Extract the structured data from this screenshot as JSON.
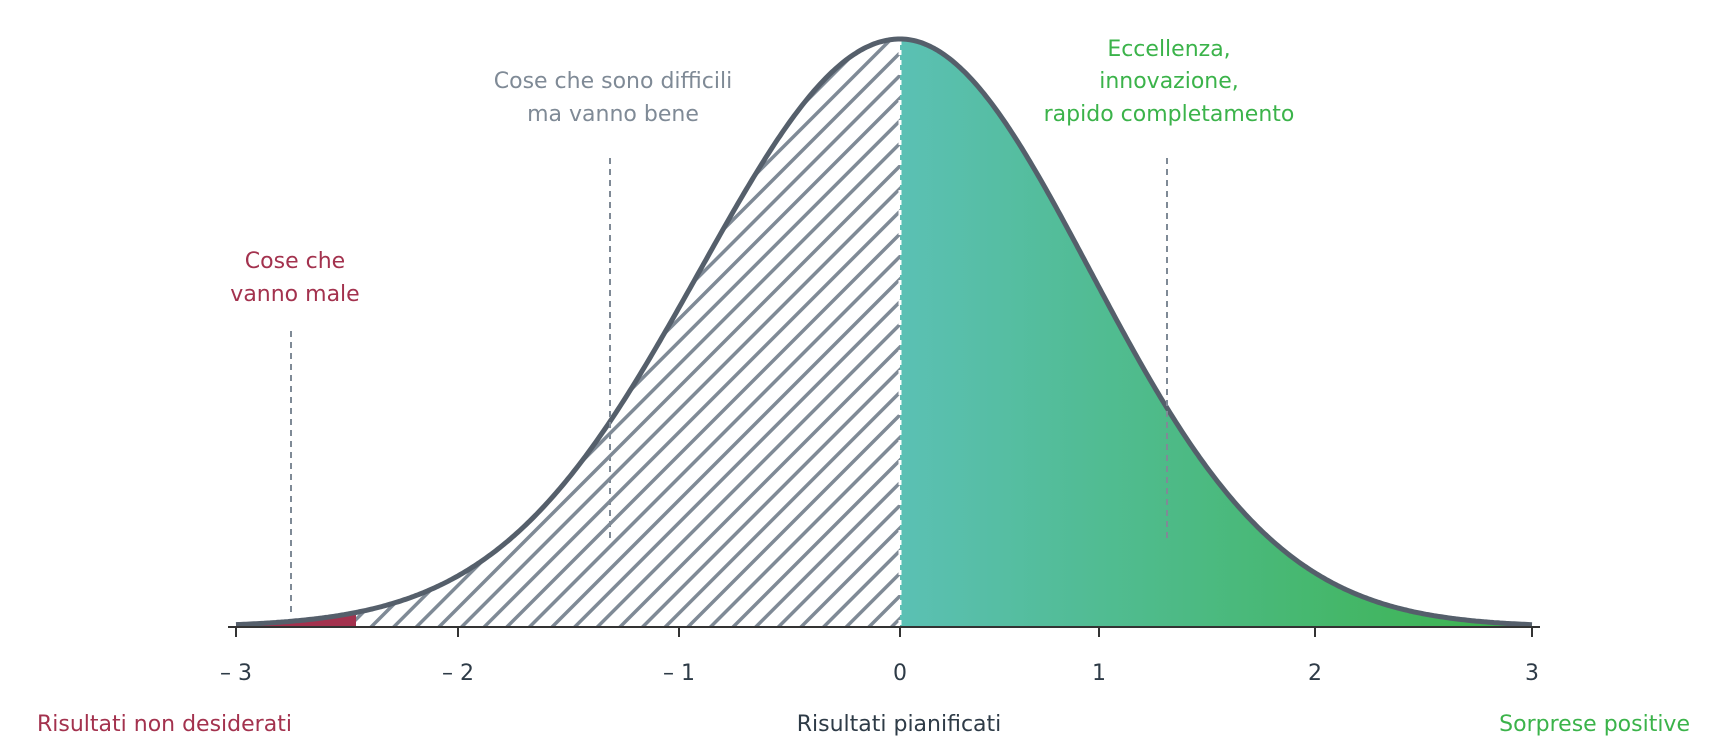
{
  "annotations": [
    {
      "lines": [
        "Cose che",
        "vanno male"
      ]
    },
    {
      "lines": [
        "Cose che sono difficili",
        "ma vanno bene"
      ]
    },
    {
      "lines": [
        "Eccellenza,",
        "innovazione,",
        "rapido completamento"
      ]
    }
  ],
  "axis": {
    "tick_labels": [
      "– 3",
      "– 2",
      "– 1",
      "0",
      "1",
      "2",
      "3"
    ]
  },
  "regions": {
    "left": "Risultati non desiderati",
    "center": "Risultati pianificati",
    "right": "Sorprese positive"
  }
}
